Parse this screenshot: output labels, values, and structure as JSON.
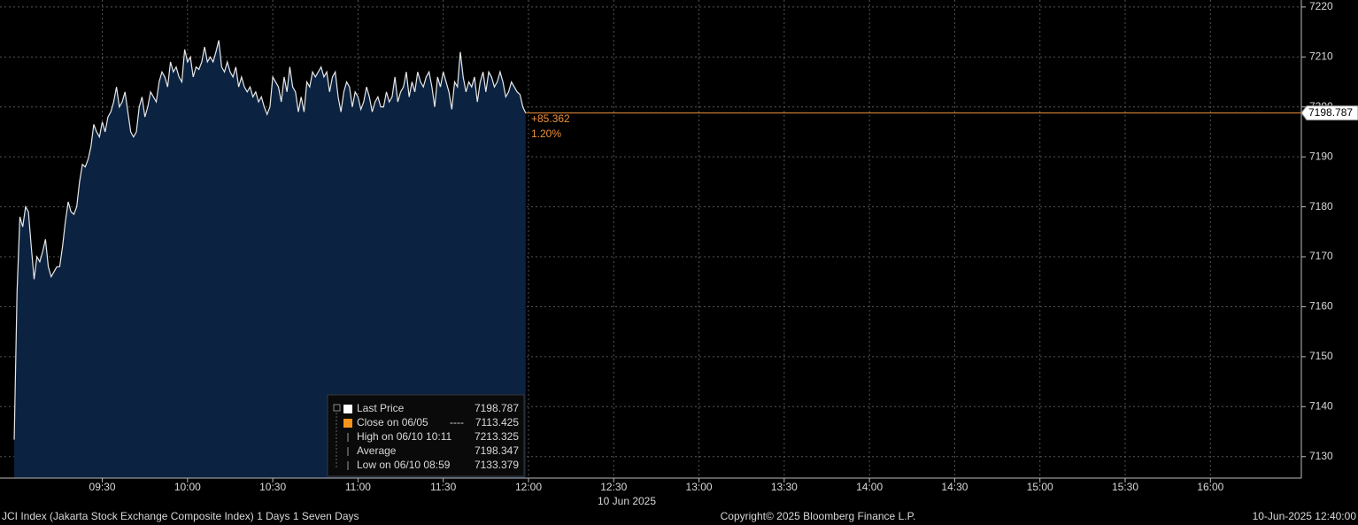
{
  "chart_data": {
    "type": "area",
    "x": [
      "08:59",
      "09:00",
      "09:01",
      "09:02",
      "09:03",
      "09:04",
      "09:05",
      "09:06",
      "09:07",
      "09:08",
      "09:09",
      "09:10",
      "09:11",
      "09:12",
      "09:13",
      "09:14",
      "09:15",
      "09:16",
      "09:17",
      "09:18",
      "09:19",
      "09:20",
      "09:21",
      "09:22",
      "09:23",
      "09:24",
      "09:25",
      "09:26",
      "09:27",
      "09:28",
      "09:29",
      "09:30",
      "09:31",
      "09:32",
      "09:33",
      "09:34",
      "09:35",
      "09:36",
      "09:37",
      "09:38",
      "09:39",
      "09:40",
      "09:41",
      "09:42",
      "09:43",
      "09:44",
      "09:45",
      "09:46",
      "09:47",
      "09:48",
      "09:49",
      "09:50",
      "09:51",
      "09:52",
      "09:53",
      "09:54",
      "09:55",
      "09:56",
      "09:57",
      "09:58",
      "09:59",
      "10:00",
      "10:01",
      "10:02",
      "10:03",
      "10:04",
      "10:05",
      "10:06",
      "10:07",
      "10:08",
      "10:09",
      "10:10",
      "10:11",
      "10:12",
      "10:13",
      "10:14",
      "10:15",
      "10:16",
      "10:17",
      "10:18",
      "10:19",
      "10:20",
      "10:21",
      "10:22",
      "10:23",
      "10:24",
      "10:25",
      "10:26",
      "10:27",
      "10:28",
      "10:29",
      "10:30",
      "10:31",
      "10:32",
      "10:33",
      "10:34",
      "10:35",
      "10:36",
      "10:37",
      "10:38",
      "10:39",
      "10:40",
      "10:41",
      "10:42",
      "10:43",
      "10:44",
      "10:45",
      "10:46",
      "10:47",
      "10:48",
      "10:49",
      "10:50",
      "10:51",
      "10:52",
      "10:53",
      "10:54",
      "10:55",
      "10:56",
      "10:57",
      "10:58",
      "10:59",
      "11:00",
      "11:01",
      "11:02",
      "11:03",
      "11:04",
      "11:05",
      "11:06",
      "11:07",
      "11:08",
      "11:09",
      "11:10",
      "11:11",
      "11:12",
      "11:13",
      "11:14",
      "11:15",
      "11:16",
      "11:17",
      "11:18",
      "11:19",
      "11:20",
      "11:21",
      "11:22",
      "11:23",
      "11:24",
      "11:25",
      "11:26",
      "11:27",
      "11:28",
      "11:29",
      "11:30",
      "11:31",
      "11:32",
      "11:33",
      "11:34",
      "11:35",
      "11:36",
      "11:37",
      "11:38",
      "11:39",
      "11:40",
      "11:41",
      "11:42",
      "11:43",
      "11:44",
      "11:45",
      "11:46",
      "11:47",
      "11:48",
      "11:49",
      "11:50",
      "11:51",
      "11:52",
      "11:53",
      "11:54",
      "11:55",
      "11:56",
      "11:57",
      "11:58",
      "11:59"
    ],
    "series": [
      {
        "name": "Last Price",
        "color": "#e8e8e8",
        "fill": "#0b2240",
        "values": [
          7133.379,
          7163,
          7178,
          7176,
          7180,
          7179,
          7172,
          7165.5,
          7170,
          7169,
          7171,
          7173.5,
          7168,
          7166,
          7167,
          7168,
          7168,
          7172,
          7177,
          7181,
          7179,
          7178.5,
          7180,
          7185,
          7188.5,
          7188,
          7189.5,
          7192,
          7196.5,
          7195,
          7194,
          7197,
          7195,
          7198,
          7199,
          7201,
          7204,
          7200,
          7201,
          7203,
          7199,
          7195,
          7194,
          7195,
          7200,
          7202,
          7198,
          7200,
          7203,
          7202,
          7201,
          7205,
          7207,
          7206,
          7204,
          7209,
          7207,
          7208,
          7206,
          7205,
          7211.5,
          7209,
          7210,
          7206,
          7208,
          7207.5,
          7209,
          7212,
          7209,
          7210,
          7209,
          7211,
          7213.325,
          7208,
          7207,
          7209,
          7207,
          7206,
          7208,
          7204,
          7206,
          7204,
          7203,
          7204,
          7202,
          7203,
          7201,
          7202,
          7200,
          7198.5,
          7200,
          7206,
          7205,
          7204,
          7201,
          7206,
          7203,
          7208,
          7204,
          7203,
          7199,
          7202,
          7199,
          7205,
          7204,
          7207,
          7206,
          7207,
          7208,
          7206,
          7207,
          7203,
          7206,
          7207,
          7202,
          7199,
          7203,
          7205,
          7204,
          7200,
          7203,
          7202,
          7199.5,
          7201,
          7204,
          7202,
          7199,
          7201,
          7202,
          7200,
          7200,
          7203,
          7201,
          7202,
          7206,
          7201,
          7203,
          7204,
          7207,
          7202,
          7205,
          7203,
          7207,
          7205,
          7204,
          7206,
          7207,
          7204,
          7200,
          7206,
          7204,
          7207,
          7205,
          7203,
          7199.5,
          7205,
          7204,
          7211,
          7206,
          7203,
          7205,
          7204,
          7206,
          7201,
          7205,
          7207,
          7203,
          7207,
          7206,
          7204,
          7205,
          7207,
          7205,
          7202,
          7203,
          7205,
          7204,
          7203,
          7202.5,
          7200,
          7198.787
        ]
      }
    ],
    "last_line_color": "#f0913a",
    "xlim": [
      "08:54",
      "16:32"
    ],
    "xticks": [
      "09:30",
      "10:00",
      "10:30",
      "11:00",
      "11:30",
      "12:00",
      "12:30",
      "13:00",
      "13:30",
      "14:00",
      "14:30",
      "15:00",
      "15:30",
      "16:00"
    ],
    "ylim": [
      7125.7,
      7221.4
    ],
    "yticks": [
      7130,
      7140,
      7150,
      7160,
      7170,
      7180,
      7190,
      7200,
      7210,
      7220
    ],
    "grid": true,
    "xlabel": "10 Jun 2025",
    "annotations": [
      "+85.362",
      "1.20%"
    ],
    "legend_rows": [
      {
        "label": "Last Price",
        "value": 7198.787,
        "color": "#ffffff"
      },
      {
        "label": "Close on 06/05",
        "dash": "----",
        "value": 7113.425,
        "color": "#f7941d"
      },
      {
        "label": "High on 06/10 10:11",
        "value": 7213.325
      },
      {
        "label": "Average",
        "value": 7198.347
      },
      {
        "label": "Low on 06/10 08:59",
        "value": 7133.379
      }
    ],
    "footer": {
      "left": "JCI Index (Jakarta Stock Exchange Composite Index) 1 Days 1 Seven Days",
      "center": "Copyright© 2025 Bloomberg Finance L.P.",
      "right": "10-Jun-2025 12:40:00"
    }
  }
}
